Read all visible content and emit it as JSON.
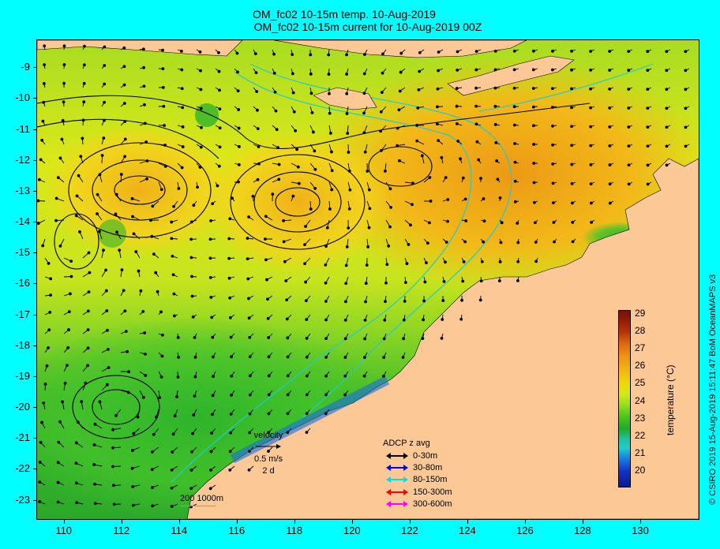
{
  "header": {
    "title_line1": "OM_fc02 10-15m temp. 10-Aug-2019",
    "title_line2": "OM_fc02 10-15m current for 10-Aug-2019 00Z"
  },
  "axes": {
    "latitude_labels": [
      "-9",
      "-10",
      "-11",
      "-12",
      "-13",
      "-14",
      "-15",
      "-16",
      "-17",
      "-18",
      "-19",
      "-20",
      "-21",
      "-22",
      "-23"
    ],
    "longitude_labels": [
      "110",
      "112",
      "114",
      "116",
      "118",
      "120",
      "122",
      "124",
      "126",
      "128",
      "130"
    ],
    "lon_range": [
      109,
      132
    ],
    "lat_range": [
      -23.6,
      -8
    ]
  },
  "colorbar": {
    "title": "temperature (°C)",
    "labels": [
      "29",
      "28",
      "27",
      "26",
      "25",
      "24",
      "23",
      "22",
      "21",
      "20"
    ],
    "range": [
      19,
      29
    ]
  },
  "velocity_key": {
    "title": "velocity",
    "speed": "0.5 m/s",
    "duration": "2 d"
  },
  "adcp_key": {
    "title": "ADCP z avg",
    "items": [
      {
        "label": "0-30m",
        "color": "#000000"
      },
      {
        "label": "30-80m",
        "color": "#0000ff"
      },
      {
        "label": "80-150m",
        "color": "#00e0e0"
      },
      {
        "label": "150-300m",
        "color": "#ff0000"
      },
      {
        "label": "300-600m",
        "color": "#ff00ff"
      }
    ]
  },
  "bathymetry_key": {
    "label": "200  1000m",
    "color": "#22cccc"
  },
  "credit": "© CSIRO 2019   15-Aug-2019 15:11:47 BoM OceanMAPS v3",
  "colors": {
    "land": "#fbc896",
    "background": "#00ffff",
    "bathymetry": "#22cccc"
  }
}
